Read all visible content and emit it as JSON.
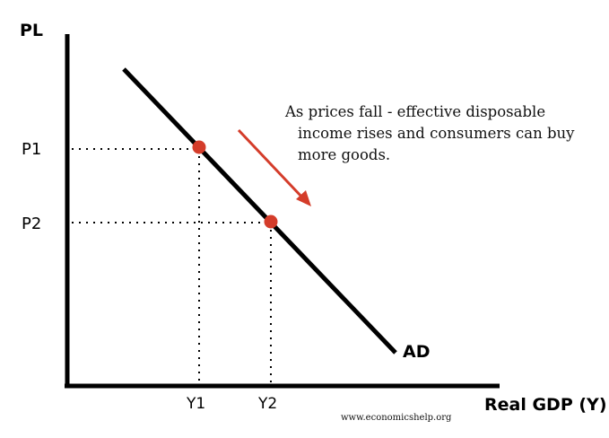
{
  "axes": {
    "y_label": "PL",
    "x_label": "Real GDP (Y)"
  },
  "curve": {
    "label": "AD"
  },
  "price_levels": [
    "P1",
    "P2"
  ],
  "output_levels": [
    "Y1",
    "Y2"
  ],
  "annotation": {
    "line1": "As prices fall - effective disposable",
    "line2": "income rises and consumers can buy",
    "line3": "more goods."
  },
  "watermark": "www.economicshelp.org",
  "colors": {
    "curve": "#000000",
    "point": "#d43c2a",
    "arrow": "#d43c2a"
  }
}
